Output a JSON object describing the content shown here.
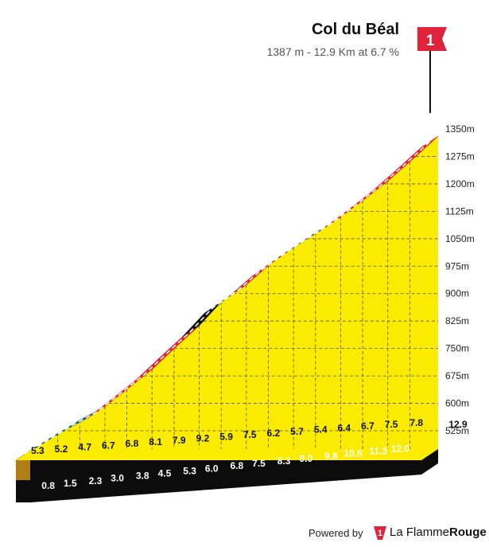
{
  "header": {
    "title": "Col du Béal",
    "subtitle": "1387 m - 12.9 Km at 6.7 %",
    "flag_label": "1"
  },
  "chart_data": {
    "type": "area",
    "title": "Col du Béal",
    "subtitle": "1387 m - 12.9 Km at 6.7 %",
    "x_unit": "km",
    "y_unit": "m",
    "yticks": [
      "525m",
      "600m",
      "675m",
      "750m",
      "825m",
      "900m",
      "975m",
      "1050m",
      "1125m",
      "1200m",
      "1275m",
      "1350m"
    ],
    "ylim": [
      475,
      1387
    ],
    "xlim": [
      0,
      12.9
    ],
    "distance_labels": [
      "0.8",
      "1.5",
      "2.3",
      "3.0",
      "3.8",
      "4.5",
      "5.3",
      "6.0",
      "6.8",
      "7.5",
      "8.3",
      "9.0",
      "9.8",
      "10.5",
      "11.3",
      "12.0",
      "12.9"
    ],
    "segments": [
      {
        "end_km": 0.8,
        "gradient": "5.3",
        "gradient_value": 5.3,
        "category": "blue"
      },
      {
        "end_km": 1.5,
        "gradient": "5.2",
        "gradient_value": 5.2,
        "category": "blue"
      },
      {
        "end_km": 2.3,
        "gradient": "4.7",
        "gradient_value": 4.7,
        "category": "blue"
      },
      {
        "end_km": 3.0,
        "gradient": "6.7",
        "gradient_value": 6.7,
        "category": "red"
      },
      {
        "end_km": 3.8,
        "gradient": "6.8",
        "gradient_value": 6.8,
        "category": "red"
      },
      {
        "end_km": 4.5,
        "gradient": "8.1",
        "gradient_value": 8.1,
        "category": "red"
      },
      {
        "end_km": 5.3,
        "gradient": "7.9",
        "gradient_value": 7.9,
        "category": "red"
      },
      {
        "end_km": 6.0,
        "gradient": "9.2",
        "gradient_value": 9.2,
        "category": "black"
      },
      {
        "end_km": 6.8,
        "gradient": "5.9",
        "gradient_value": 5.9,
        "category": "blue"
      },
      {
        "end_km": 7.5,
        "gradient": "7.5",
        "gradient_value": 7.5,
        "category": "red"
      },
      {
        "end_km": 8.3,
        "gradient": "6.2",
        "gradient_value": 6.2,
        "category": "red"
      },
      {
        "end_km": 9.0,
        "gradient": "5.7",
        "gradient_value": 5.7,
        "category": "blue"
      },
      {
        "end_km": 9.8,
        "gradient": "5.4",
        "gradient_value": 5.4,
        "category": "blue"
      },
      {
        "end_km": 10.5,
        "gradient": "6.4",
        "gradient_value": 6.4,
        "category": "red"
      },
      {
        "end_km": 11.3,
        "gradient": "6.7",
        "gradient_value": 6.7,
        "category": "red"
      },
      {
        "end_km": 12.0,
        "gradient": "7.5",
        "gradient_value": 7.5,
        "category": "red"
      },
      {
        "end_km": 12.9,
        "gradient": "7.8",
        "gradient_value": 7.8,
        "category": "red"
      }
    ],
    "colors": {
      "fill": "#fbeb00",
      "red": "#e0233a",
      "blue": "#1b5e87",
      "black": "#111111",
      "base_side": "#b07d17",
      "base_strip": "#0c0c0c",
      "grid": "#555555",
      "flag": "#e0233a"
    }
  },
  "footer": {
    "powered_by": "Powered by",
    "brand_light": "La Flamme",
    "brand_bold": "Rouge",
    "brand_logo": "flame-one-logo"
  }
}
